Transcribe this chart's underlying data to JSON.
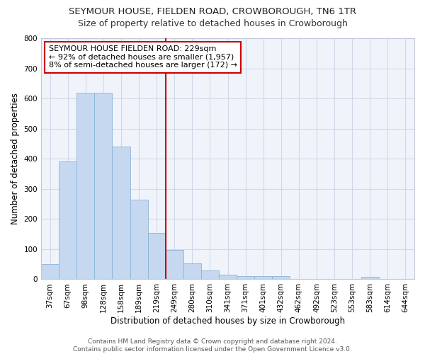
{
  "title": "SEYMOUR HOUSE, FIELDEN ROAD, CROWBOROUGH, TN6 1TR",
  "subtitle": "Size of property relative to detached houses in Crowborough",
  "xlabel": "Distribution of detached houses by size in Crowborough",
  "ylabel": "Number of detached properties",
  "bar_labels": [
    "37sqm",
    "67sqm",
    "98sqm",
    "128sqm",
    "158sqm",
    "189sqm",
    "219sqm",
    "249sqm",
    "280sqm",
    "310sqm",
    "341sqm",
    "371sqm",
    "401sqm",
    "432sqm",
    "462sqm",
    "492sqm",
    "523sqm",
    "553sqm",
    "583sqm",
    "614sqm",
    "644sqm"
  ],
  "bar_values": [
    50,
    390,
    620,
    620,
    440,
    265,
    153,
    97,
    52,
    30,
    15,
    10,
    10,
    10,
    0,
    0,
    0,
    0,
    8,
    0,
    0
  ],
  "bar_color": "#c5d8f0",
  "bar_edge_color": "#8ab4d8",
  "vline_x": 7.0,
  "annotation_text": "SEYMOUR HOUSE FIELDEN ROAD: 229sqm\n← 92% of detached houses are smaller (1,957)\n8% of semi-detached houses are larger (172) →",
  "annotation_box_color": "#ffffff",
  "annotation_box_edge_color": "#cc0000",
  "vline_color": "#cc0000",
  "ylim": [
    0,
    800
  ],
  "yticks": [
    0,
    100,
    200,
    300,
    400,
    500,
    600,
    700,
    800
  ],
  "background_color": "#ffffff",
  "plot_bg_color": "#f0f4fa",
  "grid_color": "#d0d8e8",
  "footer": "Contains HM Land Registry data © Crown copyright and database right 2024.\nContains public sector information licensed under the Open Government Licence v3.0.",
  "title_fontsize": 9.5,
  "subtitle_fontsize": 9,
  "axis_label_fontsize": 8.5,
  "tick_fontsize": 7.5,
  "annotation_fontsize": 8,
  "footer_fontsize": 6.5
}
